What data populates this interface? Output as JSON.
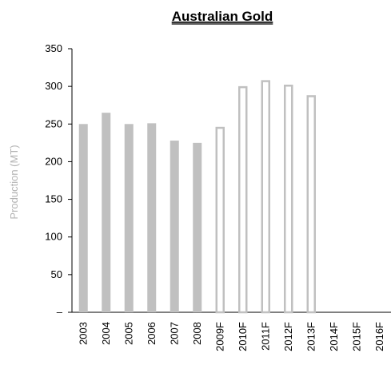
{
  "chart_data": {
    "type": "bar",
    "title": "Australian Gold",
    "ylabel": "Production (MT)",
    "xlabel": "",
    "ylim": [
      0,
      350
    ],
    "yticks": [
      0,
      50,
      100,
      150,
      200,
      250,
      300,
      350
    ],
    "ytick_labels": [
      "–",
      "50",
      "100",
      "150",
      "200",
      "250",
      "300",
      "350"
    ],
    "categories": [
      "2003",
      "2004",
      "2005",
      "2006",
      "2007",
      "2008",
      "2009F",
      "2010F",
      "2011F",
      "2012F",
      "2013F",
      "2014F",
      "2015F",
      "2016F"
    ],
    "series": [
      {
        "values": [
          250,
          265,
          250,
          251,
          228,
          225,
          null,
          null,
          null,
          null,
          null,
          null,
          null,
          null
        ]
      },
      {
        "values": [
          null,
          null,
          null,
          null,
          null,
          null,
          246,
          300,
          308,
          302,
          288,
          null,
          null,
          null
        ]
      }
    ],
    "colors": {
      "actual_fill": "#c0c0c0",
      "forecast_stroke": "#c0c0c0",
      "axis": "#000000",
      "ylabel": "#b3b3b3"
    },
    "grid": false,
    "legend": "none"
  }
}
